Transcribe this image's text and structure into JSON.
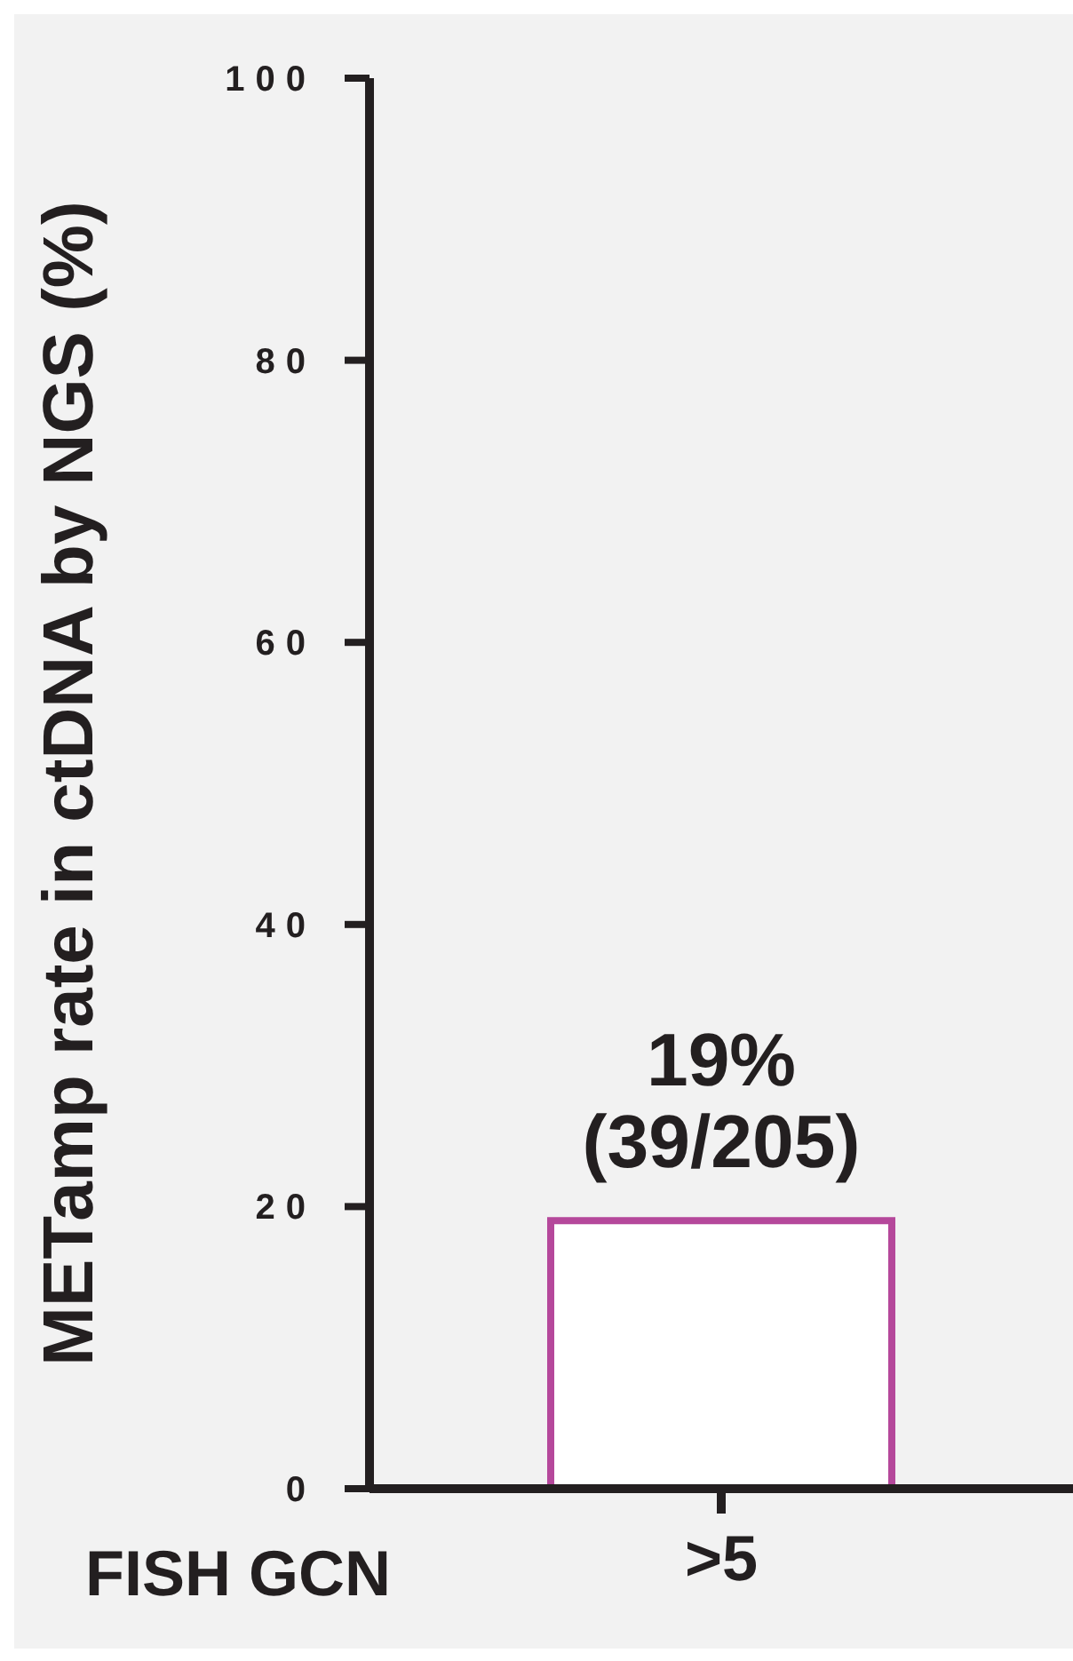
{
  "chart_data": {
    "type": "bar",
    "xlabel": "FISH GCN",
    "ylabel": "METamp rate in ctDNA by NGS (%)",
    "categories": [
      ">5"
    ],
    "series": [
      {
        "color": "#b5489b",
        "values": [
          19
        ],
        "value_labels": [
          "19%\n(39/205)"
        ]
      }
    ],
    "ylim": [
      0,
      100
    ],
    "yticks": [
      0,
      20,
      40,
      60,
      80,
      100
    ]
  }
}
